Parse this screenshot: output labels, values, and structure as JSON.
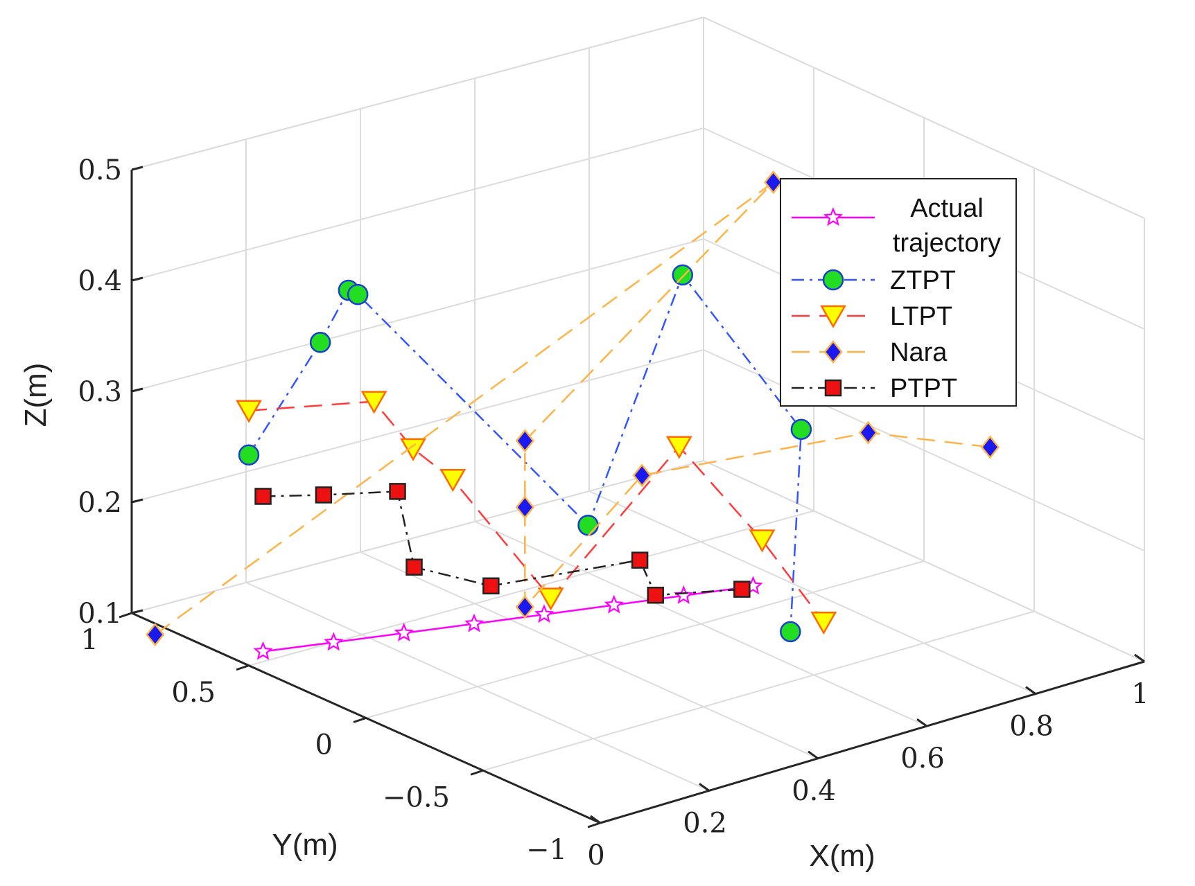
{
  "chart_data": {
    "type": "line3d",
    "title": "",
    "xlabel": "X(m)",
    "ylabel": "Y(m)",
    "zlabel": "Z(m)",
    "xlim": [
      0,
      1
    ],
    "ylim": [
      -1,
      1
    ],
    "zlim": [
      0.1,
      0.5
    ],
    "grid": true,
    "legend_position": "top-right",
    "x_ticks": [
      {
        "value": 0,
        "label": "0"
      },
      {
        "value": 0.2,
        "label": "0.2"
      },
      {
        "value": 0.4,
        "label": "0.4"
      },
      {
        "value": 0.6,
        "label": "0.6"
      },
      {
        "value": 0.8,
        "label": "0.8"
      },
      {
        "value": 1,
        "label": "1"
      }
    ],
    "y_ticks": [
      {
        "value": -1,
        "label": "−1"
      },
      {
        "value": -0.5,
        "label": "−0.5"
      },
      {
        "value": 0,
        "label": "0"
      },
      {
        "value": 0.5,
        "label": "0.5"
      },
      {
        "value": 1,
        "label": "1"
      }
    ],
    "z_ticks": [
      {
        "value": 0.1,
        "label": "0.1"
      },
      {
        "value": 0.2,
        "label": "0.2"
      },
      {
        "value": 0.3,
        "label": "0.3"
      },
      {
        "value": 0.4,
        "label": "0.4"
      },
      {
        "value": 0.5,
        "label": "0.5"
      }
    ],
    "series": [
      {
        "name": "Actual trajectory",
        "legend_lines": [
          "Actual",
          "trajectory"
        ],
        "color": "#ff00ff",
        "marker": "star",
        "marker_fill": "#ffffff",
        "marker_edge": "#ff00ff",
        "dash": "",
        "points": [
          [
            0.05,
            0.56,
            0.1
          ],
          [
            0.15,
            0.5,
            0.1
          ],
          [
            0.25,
            0.44,
            0.1
          ],
          [
            0.35,
            0.38,
            0.1
          ],
          [
            0.45,
            0.32,
            0.1
          ],
          [
            0.55,
            0.26,
            0.1
          ],
          [
            0.65,
            0.2,
            0.1
          ],
          [
            0.75,
            0.14,
            0.1
          ]
        ]
      },
      {
        "name": "ZTPT",
        "legend_lines": [
          "ZTPT"
        ],
        "color": "#3355ff",
        "marker": "circle",
        "marker_fill": "#22dd22",
        "marker_edge": "#1a3fd0",
        "dash": "18 8 4 8",
        "points": [
          [
            0.0,
            0.5,
            0.29
          ],
          [
            0.11,
            0.46,
            0.38
          ],
          [
            0.16,
            0.46,
            0.42
          ],
          [
            0.16,
            0.42,
            0.42
          ],
          [
            0.5,
            0.25,
            0.18
          ],
          [
            0.62,
            0.13,
            0.4
          ],
          [
            0.78,
            0.0,
            0.25
          ],
          [
            0.68,
            -0.2,
            0.1
          ]
        ]
      },
      {
        "name": "LTPT",
        "legend_lines": [
          "LTPT"
        ],
        "color": "#ff3b3b",
        "marker": "triangle-down",
        "marker_fill": "#ffff00",
        "marker_edge": "#ff6a00",
        "dash": "26 14",
        "points": [
          [
            0.0,
            0.5,
            0.33
          ],
          [
            0.16,
            0.35,
            0.33
          ],
          [
            0.25,
            0.4,
            0.27
          ],
          [
            0.3,
            0.35,
            0.24
          ],
          [
            0.47,
            0.34,
            0.11
          ],
          [
            0.63,
            0.17,
            0.24
          ],
          [
            0.71,
            0.0,
            0.16
          ],
          [
            0.74,
            -0.2,
            0.1
          ]
        ]
      },
      {
        "name": "Nara",
        "legend_lines": [
          "Nara"
        ],
        "color": "#ffb347",
        "marker": "diamond",
        "marker_fill": "#1a1aee",
        "marker_edge": "#ffb347",
        "dash": "26 14",
        "points": [
          [
            0.0,
            0.9,
            0.09
          ],
          [
            0.73,
            0.0,
            0.48
          ],
          [
            0.42,
            0.33,
            0.26
          ],
          [
            0.42,
            0.33,
            0.2
          ],
          [
            0.42,
            0.33,
            0.11
          ],
          [
            0.6,
            0.26,
            0.21
          ],
          [
            0.9,
            -0.0,
            0.23
          ],
          [
            1.0,
            -0.3,
            0.23
          ]
        ]
      },
      {
        "name": "PTPT",
        "legend_lines": [
          "PTPT"
        ],
        "color": "#222222",
        "marker": "square",
        "marker_fill": "#ee1111",
        "marker_edge": "#222222",
        "dash": "18 8 4 8",
        "points": [
          [
            0.05,
            0.56,
            0.24
          ],
          [
            0.12,
            0.47,
            0.24
          ],
          [
            0.21,
            0.37,
            0.24
          ],
          [
            0.26,
            0.42,
            0.16
          ],
          [
            0.38,
            0.38,
            0.13
          ],
          [
            0.58,
            0.22,
            0.14
          ],
          [
            0.62,
            0.25,
            0.1
          ],
          [
            0.73,
            0.14,
            0.1
          ]
        ]
      }
    ]
  }
}
